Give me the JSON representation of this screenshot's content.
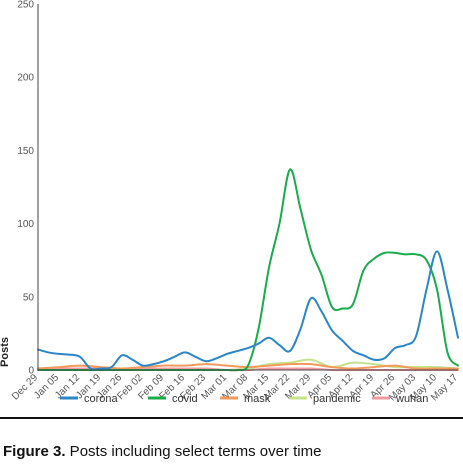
{
  "caption": {
    "label": "Figure 3.",
    "text": " Posts including select terms over time"
  },
  "chart_data": {
    "type": "line",
    "smooth": true,
    "xlabel": "",
    "ylabel": "Posts",
    "ylim": [
      0,
      250
    ],
    "yticks": [
      0,
      50,
      100,
      150,
      200,
      250
    ],
    "grid": false,
    "legend_position": "bottom",
    "categories": [
      "Dec 29",
      "Jan 05",
      "Jan 12",
      "Jan 19",
      "Jan 26",
      "Feb 02",
      "Feb 09",
      "Feb 16",
      "Feb 23",
      "Mar 01",
      "Mar 08",
      "Mar 15",
      "Mar 22",
      "Mar 29",
      "Apr 05",
      "Apr 12",
      "Apr 19",
      "Apr 26",
      "May 03",
      "May 10",
      "May 17"
    ],
    "series": [
      {
        "name": "corona",
        "color": "#2a86c7",
        "values": [
          [
            0,
            14
          ],
          [
            0.5,
            12
          ],
          [
            1,
            11
          ],
          [
            1.5,
            10.5
          ],
          [
            2,
            9
          ],
          [
            2.5,
            1
          ],
          [
            3,
            1
          ],
          [
            3.5,
            2
          ],
          [
            4,
            10
          ],
          [
            4.5,
            7
          ],
          [
            5,
            3
          ],
          [
            5.5,
            4
          ],
          [
            6,
            6
          ],
          [
            6.5,
            9
          ],
          [
            7,
            12
          ],
          [
            7.5,
            9
          ],
          [
            8,
            6
          ],
          [
            8.5,
            8
          ],
          [
            9,
            11
          ],
          [
            9.5,
            13
          ],
          [
            10,
            15
          ],
          [
            10.5,
            18
          ],
          [
            11,
            22
          ],
          [
            11.5,
            17
          ],
          [
            12,
            13
          ],
          [
            12.5,
            28
          ],
          [
            13,
            49
          ],
          [
            13.5,
            40
          ],
          [
            14,
            27
          ],
          [
            14.5,
            20
          ],
          [
            15,
            13
          ],
          [
            15.5,
            10
          ],
          [
            16,
            7
          ],
          [
            16.5,
            8
          ],
          [
            17,
            15
          ],
          [
            17.5,
            17
          ],
          [
            18,
            23
          ],
          [
            18.5,
            55
          ],
          [
            19,
            81
          ],
          [
            19.5,
            55
          ],
          [
            20,
            22
          ]
        ]
      },
      {
        "name": "covid",
        "color": "#1aab4b",
        "values": [
          [
            0,
            0
          ],
          [
            1,
            0
          ],
          [
            2,
            0
          ],
          [
            3,
            0
          ],
          [
            4,
            0
          ],
          [
            5,
            0
          ],
          [
            6,
            0
          ],
          [
            7,
            0
          ],
          [
            8,
            0
          ],
          [
            9,
            0
          ],
          [
            9.5,
            0
          ],
          [
            10,
            3
          ],
          [
            10.5,
            28
          ],
          [
            11,
            70
          ],
          [
            11.5,
            100
          ],
          [
            12,
            137
          ],
          [
            12.5,
            110
          ],
          [
            13,
            82
          ],
          [
            13.5,
            65
          ],
          [
            14,
            43
          ],
          [
            14.5,
            42
          ],
          [
            15,
            45
          ],
          [
            15.5,
            68
          ],
          [
            16,
            76
          ],
          [
            16.5,
            80
          ],
          [
            17,
            80
          ],
          [
            17.5,
            79
          ],
          [
            18,
            79
          ],
          [
            18.5,
            75
          ],
          [
            19,
            55
          ],
          [
            19.5,
            12
          ],
          [
            20,
            3
          ]
        ]
      },
      {
        "name": "mask",
        "color": "#f19a5c",
        "values": [
          [
            0,
            1
          ],
          [
            1,
            2
          ],
          [
            2,
            3
          ],
          [
            3,
            2
          ],
          [
            4,
            1
          ],
          [
            5,
            2
          ],
          [
            6,
            3
          ],
          [
            7,
            3
          ],
          [
            8,
            4
          ],
          [
            9,
            3
          ],
          [
            10,
            2
          ],
          [
            11,
            3
          ],
          [
            12,
            4
          ],
          [
            13,
            4
          ],
          [
            14,
            2
          ],
          [
            15,
            1
          ],
          [
            16,
            2
          ],
          [
            17,
            3
          ],
          [
            18,
            1
          ],
          [
            19,
            1
          ],
          [
            20,
            1
          ]
        ]
      },
      {
        "name": "pandemic",
        "color": "#c6e28a",
        "values": [
          [
            0,
            0
          ],
          [
            1,
            0
          ],
          [
            2,
            0
          ],
          [
            3,
            0
          ],
          [
            4,
            0
          ],
          [
            5,
            0
          ],
          [
            6,
            0
          ],
          [
            7,
            0
          ],
          [
            8,
            0
          ],
          [
            9,
            0
          ],
          [
            10,
            1
          ],
          [
            11,
            4
          ],
          [
            12,
            5
          ],
          [
            13,
            7
          ],
          [
            14,
            2
          ],
          [
            15,
            5
          ],
          [
            16,
            4
          ],
          [
            17,
            2
          ],
          [
            18,
            2
          ],
          [
            19,
            2
          ],
          [
            20,
            1
          ]
        ]
      },
      {
        "name": "wuhan",
        "color": "#f29aa2",
        "values": [
          [
            0,
            0
          ],
          [
            1,
            1
          ],
          [
            2,
            1
          ],
          [
            3,
            1
          ],
          [
            4,
            1
          ],
          [
            5,
            1
          ],
          [
            6,
            1
          ],
          [
            7,
            1
          ],
          [
            8,
            1
          ],
          [
            9,
            0
          ],
          [
            10,
            0
          ],
          [
            11,
            1
          ],
          [
            12,
            1
          ],
          [
            13,
            1
          ],
          [
            14,
            0
          ],
          [
            15,
            0
          ],
          [
            16,
            0
          ],
          [
            17,
            0
          ],
          [
            18,
            0
          ],
          [
            19,
            0
          ],
          [
            20,
            0
          ]
        ]
      }
    ]
  }
}
